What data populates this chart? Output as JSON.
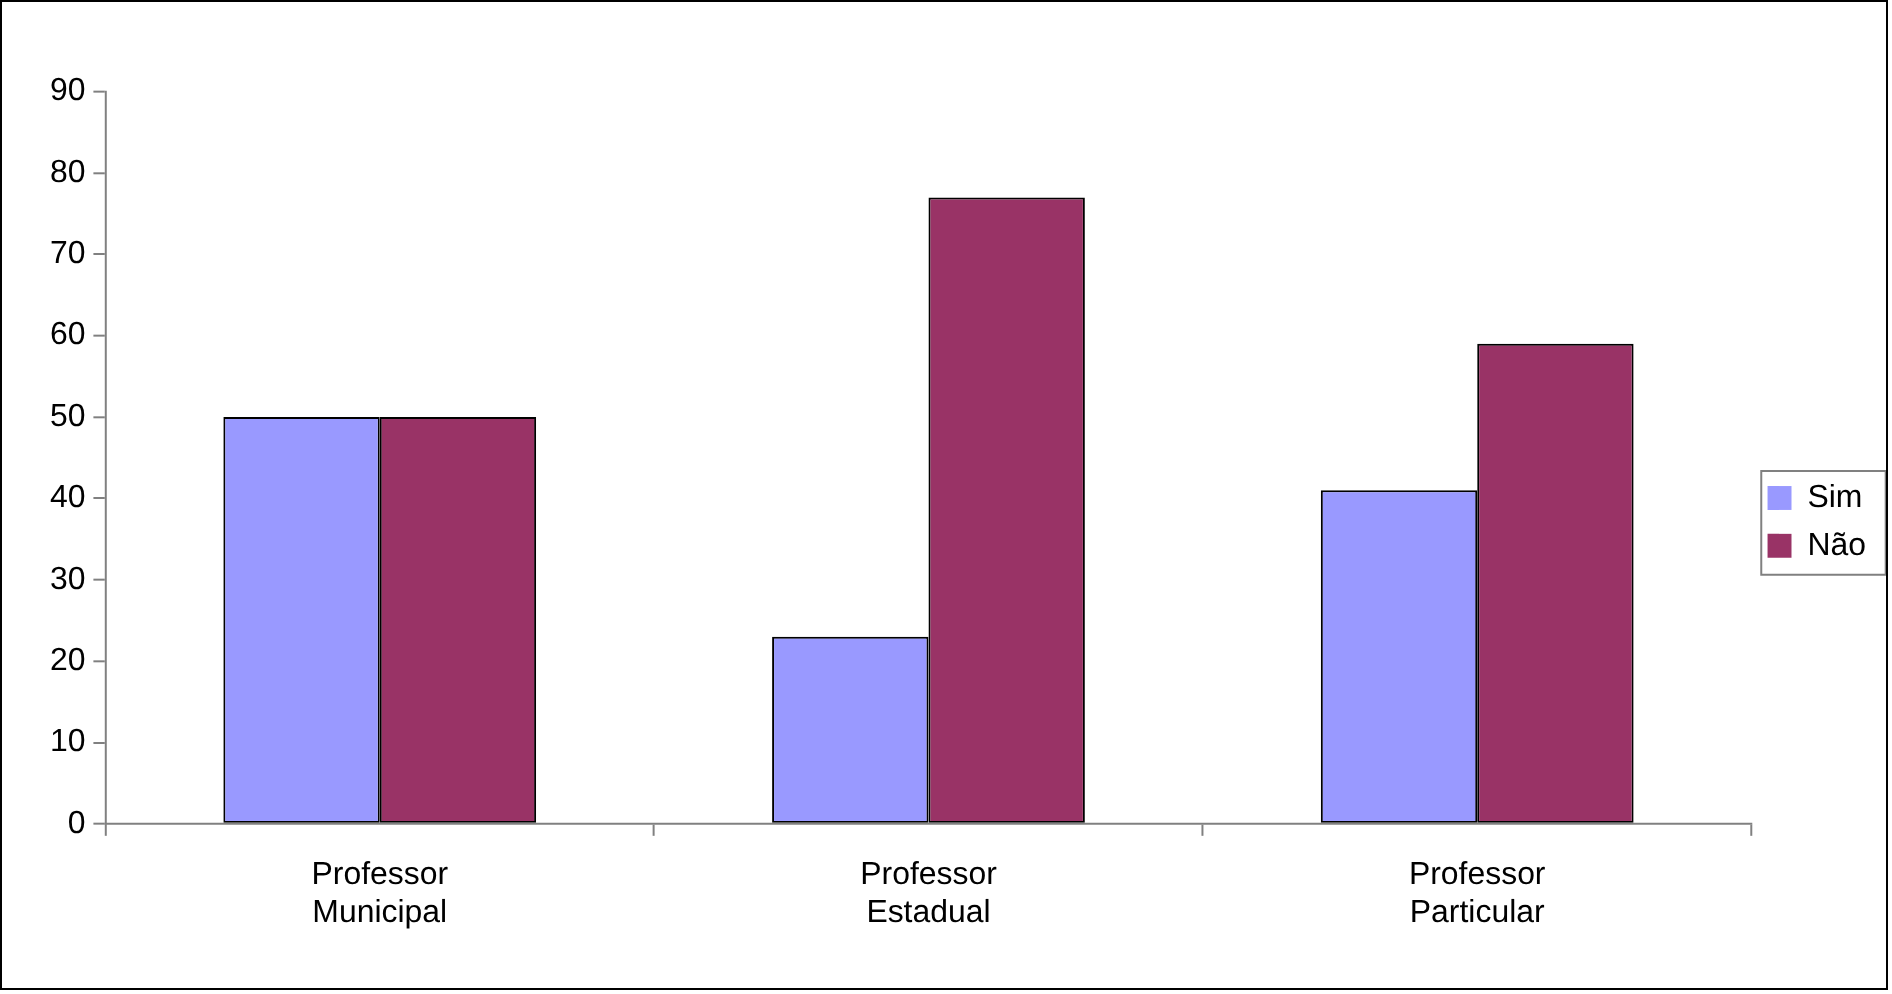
{
  "chart_data": {
    "type": "bar",
    "categories": [
      "Professor Municipal",
      "Professor Estadual",
      "Professor Particular"
    ],
    "series": [
      {
        "name": "Sim",
        "color": "#9999ff",
        "values": [
          50,
          23,
          41
        ]
      },
      {
        "name": "Não",
        "color": "#993366",
        "values": [
          50,
          77,
          59
        ]
      }
    ],
    "ylim": [
      0,
      90
    ],
    "yticks": [
      0,
      10,
      20,
      30,
      40,
      50,
      60,
      70,
      80,
      90
    ],
    "grid": false,
    "legend": "right"
  }
}
